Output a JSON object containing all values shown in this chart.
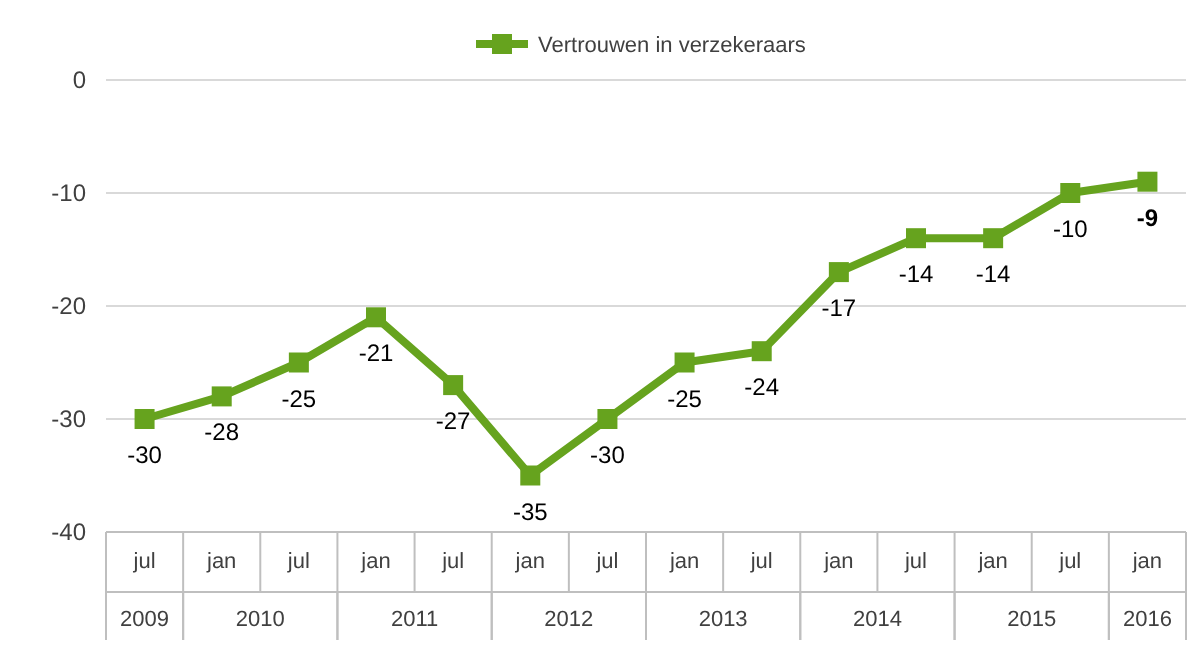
{
  "chart_data": {
    "type": "line",
    "categories": [
      "jul",
      "jan",
      "jul",
      "jan",
      "jul",
      "jan",
      "jul",
      "jan",
      "jul",
      "jan",
      "jul",
      "jan",
      "jul",
      "jan"
    ],
    "annotations": [
      "2009",
      "2010",
      "2011",
      "2012",
      "2013",
      "2014",
      "2015",
      "2016"
    ],
    "series": [
      {
        "name": "Vertrouwen in verzekeraars",
        "color": "#66a31e",
        "values": [
          -30,
          -28,
          -25,
          -21,
          -27,
          -35,
          -30,
          -25,
          -24,
          -17,
          -14,
          -14,
          -10,
          -9
        ]
      }
    ],
    "ylim": [
      -40,
      0
    ],
    "yticks": [
      -40,
      -30,
      -20,
      -10,
      0
    ],
    "grid": "y",
    "legend": "top",
    "marker": "square",
    "line_style": "solid",
    "data_labels": true
  }
}
